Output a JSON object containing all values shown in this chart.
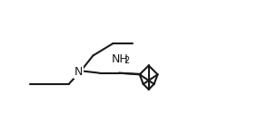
{
  "background_color": "#ffffff",
  "line_color": "#1a1a1a",
  "line_width": 1.5,
  "text_color": "#1a1a1a",
  "nh2_label": "NH",
  "nh2_sub": "2",
  "n_label": "N"
}
